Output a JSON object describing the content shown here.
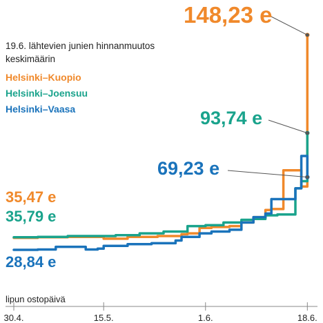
{
  "chart_data": {
    "type": "line",
    "subtitle": "19.6. lähtevien junien hinnanmuutos keskimäärin",
    "xlabel": "lipun ostopäivä",
    "x_ticks": [
      "30.4.",
      "15.5.",
      "1.6.",
      "18.6."
    ],
    "x_domain": [
      "2023-04-30",
      "2023-06-19"
    ],
    "ylim": [
      20,
      160
    ],
    "unit": "e",
    "series": [
      {
        "name": "Helsinki–Kuopio",
        "color": "#f0892b",
        "start_label": "35,47 e",
        "end_label": "148,23 e",
        "x": [
          "2023-04-30",
          "2023-05-04",
          "2023-05-09",
          "2023-05-14",
          "2023-05-15",
          "2023-05-19",
          "2023-05-24",
          "2023-05-28",
          "2023-05-29",
          "2023-05-31",
          "2023-06-02",
          "2023-06-05",
          "2023-06-07",
          "2023-06-09",
          "2023-06-11",
          "2023-06-12",
          "2023-06-13",
          "2023-06-14",
          "2023-06-15",
          "2023-06-16",
          "2023-06-17",
          "2023-06-18"
        ],
        "y": [
          35.5,
          35.8,
          36.0,
          36.0,
          35.0,
          36.0,
          36.5,
          37.5,
          38.0,
          41.0,
          41.5,
          42.0,
          44.0,
          47.0,
          51.0,
          51.5,
          51.5,
          73.0,
          73.0,
          73.0,
          64.0,
          148.23
        ],
        "dashed_segments": [
          [
            17,
            19
          ]
        ]
      },
      {
        "name": "Helsinki–Joensuu",
        "color": "#1aa38c",
        "start_label": "35,79 e",
        "end_label": "93,74 e",
        "x": [
          "2023-04-30",
          "2023-05-04",
          "2023-05-09",
          "2023-05-14",
          "2023-05-17",
          "2023-05-21",
          "2023-05-25",
          "2023-05-28",
          "2023-05-29",
          "2023-06-01",
          "2023-06-04",
          "2023-06-07",
          "2023-06-09",
          "2023-06-11",
          "2023-06-13",
          "2023-06-14",
          "2023-06-15",
          "2023-06-16",
          "2023-06-17",
          "2023-06-18"
        ],
        "y": [
          35.8,
          36.0,
          36.5,
          36.5,
          37.0,
          38.0,
          39.0,
          39.0,
          42.0,
          42.5,
          44.0,
          45.5,
          46.0,
          48.0,
          48.5,
          48.5,
          48.5,
          63.0,
          67.0,
          93.74
        ],
        "dashed_segments": [
          [
            14,
            16
          ]
        ]
      },
      {
        "name": "Helsinki–Vaasa",
        "color": "#1a73bb",
        "start_label": "28,84 e",
        "end_label": "69,23 e",
        "x": [
          "2023-04-30",
          "2023-05-04",
          "2023-05-07",
          "2023-05-11",
          "2023-05-12",
          "2023-05-14",
          "2023-05-15",
          "2023-05-19",
          "2023-05-23",
          "2023-05-27",
          "2023-05-28",
          "2023-05-31",
          "2023-06-02",
          "2023-06-05",
          "2023-06-07",
          "2023-06-09",
          "2023-06-11",
          "2023-06-12",
          "2023-06-13",
          "2023-06-14",
          "2023-06-15",
          "2023-06-16",
          "2023-06-17",
          "2023-06-18"
        ],
        "y": [
          28.84,
          29.0,
          30.5,
          30.5,
          29.0,
          29.5,
          31.0,
          32.0,
          32.5,
          34.0,
          36.0,
          38.0,
          39.0,
          40.0,
          44.0,
          47.0,
          49.0,
          57.0,
          57.0,
          57.0,
          57.0,
          63.0,
          81.0,
          69.23
        ],
        "dashed_segments": [
          [
            17,
            20
          ]
        ]
      }
    ]
  }
}
